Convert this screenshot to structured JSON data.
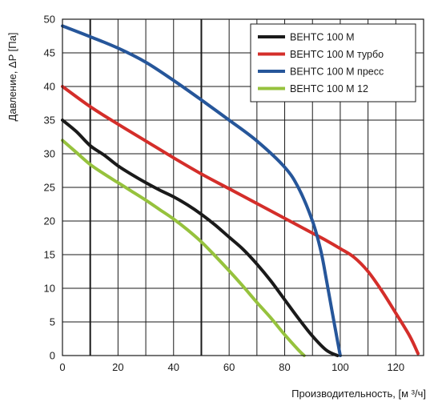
{
  "chart_data": {
    "type": "line",
    "title": "",
    "xlabel": "Производительность, [м ³/ч]",
    "ylabel": "Давление, ΔP [Па]",
    "xlim": [
      0,
      130
    ],
    "ylim": [
      0,
      50
    ],
    "x_ticks": [
      0,
      20,
      40,
      60,
      80,
      100,
      120
    ],
    "y_ticks": [
      0,
      5,
      10,
      15,
      20,
      25,
      30,
      35,
      40,
      45,
      50
    ],
    "grid": true,
    "legend_position": "top-right",
    "series": [
      {
        "name": "ВЕНТС 100 М",
        "color": "#1a1a1a",
        "x": [
          0,
          5,
          10,
          15,
          20,
          25,
          30,
          35,
          40,
          45,
          50,
          55,
          60,
          65,
          70,
          75,
          80,
          85,
          90,
          95,
          99
        ],
        "y": [
          35,
          33.3,
          31.2,
          29.8,
          28.2,
          26.9,
          25.7,
          24.6,
          23.6,
          22.4,
          21.0,
          19.4,
          17.6,
          15.8,
          13.6,
          11.1,
          8.3,
          5.5,
          2.9,
          0.8,
          0
        ]
      },
      {
        "name": "ВЕНТС 100 М турбо",
        "color": "#d42e2a",
        "x": [
          0,
          10,
          20,
          30,
          40,
          50,
          60,
          70,
          80,
          90,
          95,
          100,
          105,
          110,
          115,
          120,
          125,
          128
        ],
        "y": [
          40,
          37.0,
          34.4,
          31.9,
          29.4,
          27.0,
          24.8,
          22.6,
          20.4,
          18.2,
          17.1,
          15.9,
          14.6,
          12.5,
          9.6,
          6.3,
          2.9,
          0.3
        ]
      },
      {
        "name": "ВЕНТС 100 М пресс",
        "color": "#26569a",
        "x": [
          0,
          10,
          20,
          30,
          40,
          50,
          60,
          70,
          80,
          85,
          90,
          93,
          95,
          97,
          99,
          100
        ],
        "y": [
          49,
          47.4,
          45.7,
          43.6,
          40.9,
          38.0,
          35.0,
          31.9,
          28.0,
          24.9,
          20.0,
          15.6,
          11.3,
          6.7,
          2.2,
          0
        ]
      },
      {
        "name": "ВЕНТС 100 М 12",
        "color": "#96c23d",
        "x": [
          0,
          5,
          10,
          15,
          20,
          25,
          30,
          35,
          40,
          45,
          50,
          55,
          60,
          65,
          70,
          75,
          80,
          85,
          87
        ],
        "y": [
          32,
          30.2,
          28.4,
          27.0,
          25.7,
          24.4,
          23.1,
          21.7,
          20.3,
          18.7,
          16.9,
          14.8,
          12.6,
          10.3,
          7.9,
          5.6,
          3.1,
          0.8,
          0
        ]
      }
    ]
  }
}
